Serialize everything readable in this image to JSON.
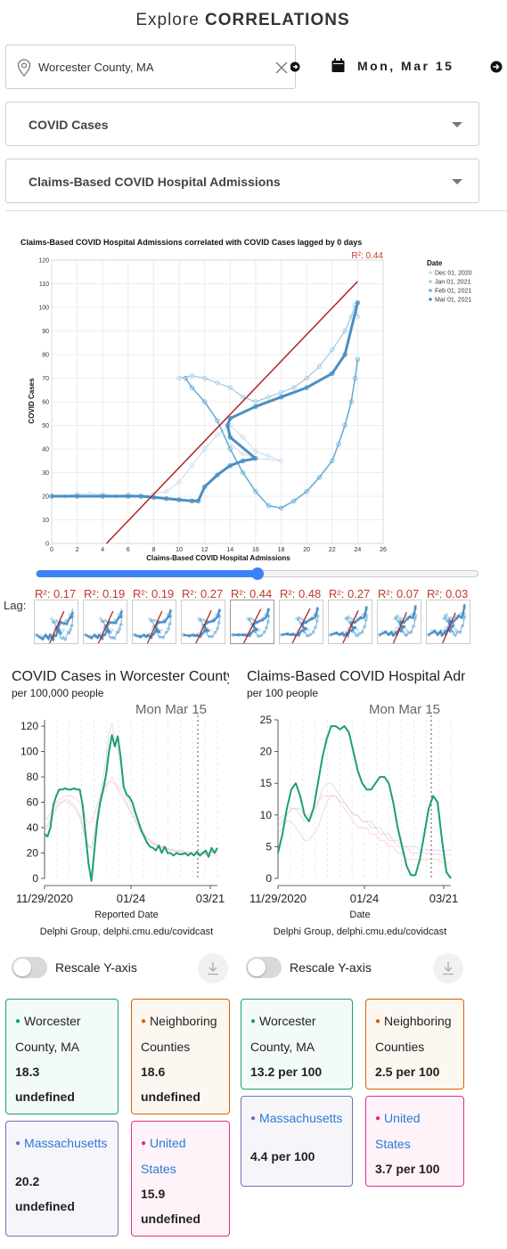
{
  "header": {
    "title_prefix": "Explore",
    "title_main": "CORRELATIONS"
  },
  "location": {
    "value": "Worcester County, MA",
    "icon": "map-pin-icon"
  },
  "date": {
    "label": "Mon, Mar 15",
    "icon": "calendar-icon"
  },
  "selects": {
    "signal_1": "COVID Cases",
    "signal_2": "Claims-Based COVID Hospital Admissions"
  },
  "scatter": {
    "title": "Claims-Based COVID Hospital Admissions correlated with COVID Cases lagged by 0 days",
    "r2_label": "R²: 0.44",
    "legend_title": "Date",
    "legend_items": [
      "Dec 01, 2020",
      "Jan 01, 2021",
      "Feb 01, 2021",
      "Mar 01, 2021"
    ]
  },
  "lag": {
    "label": "Lag:",
    "r2_values": [
      "R²: 0.17",
      "R²: 0.19",
      "R²: 0.19",
      "R²: 0.27",
      "R²: 0.44",
      "R²: 0.48",
      "R²: 0.27",
      "R²: 0.07",
      "R²: 0.03"
    ],
    "selected_index": 4,
    "slider_fraction": 0.5
  },
  "left_panel": {
    "title": "COVID Cases in Worcester County",
    "subtitle": "per 100,000 people",
    "date_marker": "Mon Mar 15",
    "xlabel": "Reported Date",
    "credit": "Delphi Group, delphi.cmu.edu/covidcast",
    "toggle_label": "Rescale Y-axis"
  },
  "right_panel": {
    "title": "Claims-Based COVID Hospital Admissions",
    "subtitle": "per 100 people",
    "date_marker": "Mon Mar 15",
    "xlabel": "Date",
    "credit": "Delphi Group, delphi.cmu.edu/covidcast",
    "toggle_label": "Rescale Y-axis"
  },
  "cards_left": [
    {
      "name": "Worcester County, MA",
      "value": "18.3",
      "unit": "undefined",
      "color": "#1b9e77"
    },
    {
      "name": "Neighboring Counties",
      "value": "18.6",
      "unit": "undefined",
      "color": "#d95f02"
    },
    {
      "name": "Massachusetts",
      "value": "20.2",
      "unit": "undefined",
      "color": "#7570b3"
    },
    {
      "name": "United States",
      "value": "15.9",
      "unit": "undefined",
      "color": "#e7298a"
    }
  ],
  "cards_right": [
    {
      "name": "Worcester County, MA",
      "value": "13.2 per 100",
      "color": "#1b9e77"
    },
    {
      "name": "Neighboring Counties",
      "value": "2.5 per 100",
      "color": "#d95f02"
    },
    {
      "name": "Massachusetts",
      "value": "4.4 per 100",
      "color": "#7570b3"
    },
    {
      "name": "United States",
      "value": "3.7 per 100",
      "color": "#e7298a"
    }
  ],
  "chart_data": [
    {
      "type": "scatter",
      "title": "Claims-Based COVID Hospital Admissions correlated with COVID Cases lagged by 0 days",
      "xlabel": "Claims-Based COVID Hospital Admissions",
      "ylabel": "COVID Cases",
      "xlim": [
        0,
        26
      ],
      "ylim": [
        0,
        120
      ],
      "xticks": [
        0,
        2,
        4,
        6,
        8,
        10,
        12,
        14,
        16,
        18,
        20,
        22,
        24,
        26
      ],
      "yticks": [
        0,
        10,
        20,
        30,
        40,
        50,
        60,
        70,
        80,
        90,
        100,
        110,
        120
      ],
      "grid": true,
      "legend_position": "right",
      "r2": 0.44,
      "regression_line": [
        [
          4.3,
          0
        ],
        [
          24,
          111
        ]
      ],
      "series": [
        {
          "name": "Dec 01, 2020",
          "points": [
            [
              0,
              20
            ],
            [
              1,
              20
            ],
            [
              2,
              21
            ],
            [
              3,
              21
            ],
            [
              4,
              21
            ],
            [
              5,
              20
            ],
            [
              6,
              21
            ],
            [
              7,
              20
            ],
            [
              8,
              21
            ],
            [
              9,
              22
            ],
            [
              10,
              26
            ],
            [
              11,
              33
            ],
            [
              12,
              40
            ],
            [
              13,
              46
            ],
            [
              14,
              50
            ],
            [
              15,
              45
            ],
            [
              16,
              39
            ],
            [
              17,
              37
            ],
            [
              18,
              35
            ],
            [
              16,
              36
            ],
            [
              15,
              38
            ],
            [
              14,
              42
            ]
          ]
        },
        {
          "name": "Jan 01, 2021",
          "points": [
            [
              10,
              70
            ],
            [
              11,
              71
            ],
            [
              12,
              70
            ],
            [
              13,
              68
            ],
            [
              14,
              66
            ],
            [
              15,
              62
            ],
            [
              16,
              60
            ],
            [
              17,
              62
            ],
            [
              18,
              64
            ],
            [
              19,
              66
            ],
            [
              20,
              70
            ],
            [
              21,
              75
            ],
            [
              22,
              82
            ],
            [
              23,
              90
            ],
            [
              23.5,
              96
            ],
            [
              23.8,
              101
            ],
            [
              24,
              96
            ]
          ]
        },
        {
          "name": "Feb 01, 2021",
          "points": [
            [
              24,
              78
            ],
            [
              23.8,
              70
            ],
            [
              23.5,
              60
            ],
            [
              23,
              50
            ],
            [
              22.5,
              42
            ],
            [
              22,
              35
            ],
            [
              21,
              28
            ],
            [
              20,
              22
            ],
            [
              19,
              18
            ],
            [
              18,
              15
            ],
            [
              17,
              16
            ],
            [
              16,
              22
            ],
            [
              15,
              30
            ],
            [
              14,
              40
            ],
            [
              13,
              52
            ],
            [
              12,
              60
            ],
            [
              11,
              66
            ],
            [
              10.5,
              70
            ]
          ]
        },
        {
          "name": "Mar 01, 2021",
          "points": [
            [
              0,
              20
            ],
            [
              2,
              20
            ],
            [
              4,
              20
            ],
            [
              6,
              20
            ],
            [
              7,
              20
            ],
            [
              8,
              19.5
            ],
            [
              9,
              19
            ],
            [
              10,
              18.5
            ],
            [
              11,
              18
            ],
            [
              11.5,
              18
            ],
            [
              12,
              24
            ],
            [
              13,
              29
            ],
            [
              14,
              33
            ],
            [
              15,
              35
            ],
            [
              16,
              36
            ],
            [
              14,
              45
            ],
            [
              13.8,
              50
            ],
            [
              14,
              53
            ],
            [
              16,
              58
            ],
            [
              18,
              62
            ],
            [
              20,
              66
            ],
            [
              22,
              72
            ],
            [
              23,
              80
            ],
            [
              24,
              102
            ]
          ]
        }
      ]
    },
    {
      "type": "line",
      "title": "COVID Cases in Worcester County",
      "xlabel": "Reported Date",
      "ylabel": "",
      "x_ticks": [
        "11/29/2020",
        "01/24",
        "03/21"
      ],
      "ylim": [
        0,
        125
      ],
      "yticks": [
        0,
        20,
        40,
        60,
        80,
        100,
        120
      ],
      "marker_date": "Mon Mar 15",
      "series": [
        {
          "name": "Worcester County, MA",
          "values": [
            35,
            33,
            40,
            58,
            65,
            70,
            70,
            71,
            70,
            70,
            71,
            70,
            70,
            58,
            35,
            12,
            -2,
            22,
            45,
            60,
            70,
            82,
            100,
            113,
            104,
            112,
            95,
            72,
            66,
            64,
            60,
            52,
            45,
            38,
            33,
            28,
            25,
            24,
            22,
            26,
            20,
            25,
            20,
            20,
            18,
            20,
            19,
            19,
            20,
            18,
            20,
            18,
            21,
            18,
            20,
            22,
            17,
            24,
            20,
            24
          ]
        },
        {
          "name": "Neighboring Counties",
          "values": [
            40,
            42,
            48,
            54,
            58,
            60,
            60,
            61,
            60,
            58,
            56,
            52,
            48,
            40,
            30,
            25,
            24,
            35,
            48,
            60,
            68,
            72,
            76,
            80,
            76,
            72,
            70,
            66,
            60,
            55,
            50,
            45,
            40,
            36,
            33,
            30,
            28,
            27,
            26,
            25,
            24,
            24,
            23,
            22,
            22,
            21,
            21,
            21,
            20,
            20,
            20,
            20,
            20,
            20,
            20,
            20,
            20,
            20,
            20,
            20
          ]
        },
        {
          "name": "Massachusetts",
          "values": [
            38,
            40,
            45,
            50,
            55,
            58,
            60,
            62,
            62,
            60,
            58,
            55,
            50,
            42,
            32,
            26,
            24,
            34,
            50,
            66,
            80,
            95,
            115,
            122,
            110,
            100,
            88,
            74,
            65,
            60,
            55,
            50,
            45,
            40,
            36,
            32,
            30,
            28,
            27,
            26,
            25,
            25,
            24,
            23,
            23,
            22,
            22,
            22,
            21,
            21,
            21,
            21,
            21,
            21,
            21,
            21,
            21,
            21,
            21,
            21
          ]
        },
        {
          "name": "United States",
          "values": [
            45,
            48,
            52,
            56,
            60,
            62,
            64,
            65,
            65,
            65,
            64,
            62,
            60,
            55,
            48,
            44,
            44,
            50,
            58,
            65,
            70,
            74,
            76,
            76,
            74,
            70,
            66,
            62,
            58,
            54,
            50,
            46,
            42,
            38,
            35,
            32,
            30,
            28,
            27,
            26,
            25,
            24,
            23,
            22,
            22,
            21,
            21,
            20,
            20,
            20,
            19,
            19,
            19,
            19,
            19,
            19,
            18,
            18,
            18,
            18
          ]
        }
      ]
    },
    {
      "type": "line",
      "title": "Claims-Based COVID Hospital Admissions",
      "xlabel": "Date",
      "ylabel": "",
      "x_ticks": [
        "11/29/2020",
        "01/24",
        "03/21"
      ],
      "ylim": [
        0,
        25
      ],
      "yticks": [
        0,
        5,
        10,
        15,
        20,
        25
      ],
      "marker_date": "Mon Mar 15",
      "series": [
        {
          "name": "Worcester County, MA",
          "values": [
            4,
            7,
            11,
            14,
            15,
            13,
            10,
            9,
            11,
            15,
            19,
            22,
            24,
            24,
            23.5,
            24,
            23,
            20,
            17,
            15,
            14,
            14,
            15,
            16,
            16,
            15,
            12,
            8,
            5,
            2,
            0.5,
            0.5,
            3,
            7,
            11,
            13,
            12,
            6,
            1,
            0
          ]
        },
        {
          "name": "Neighboring Counties",
          "values": [
            7,
            8,
            9,
            9,
            8,
            7,
            6,
            6,
            7,
            8,
            10,
            12,
            13,
            13,
            12,
            11,
            10,
            9,
            8,
            8,
            8,
            7,
            7,
            6,
            6,
            5,
            5,
            4,
            4,
            3,
            3,
            3,
            3,
            3,
            3,
            3,
            3,
            2.5,
            2.5,
            2.5
          ]
        },
        {
          "name": "Massachusetts",
          "values": [
            8,
            9,
            10,
            11,
            11,
            10,
            9,
            9,
            10,
            12,
            14,
            15,
            15,
            14,
            13,
            12,
            11,
            10,
            10,
            9,
            9,
            9,
            8,
            8,
            7,
            7,
            6,
            6,
            5,
            5,
            5,
            5,
            4.5,
            4.5,
            4.5,
            4.5,
            4.4,
            4.4,
            4.4,
            4.4
          ]
        },
        {
          "name": "United States",
          "values": [
            9,
            10,
            10,
            11,
            11,
            11,
            10,
            10,
            11,
            12,
            13,
            13,
            13,
            13,
            12,
            12,
            11,
            10,
            10,
            9,
            9,
            8,
            8,
            7,
            7,
            6,
            6,
            5,
            5,
            5,
            4,
            4,
            4,
            4,
            4,
            3.8,
            3.8,
            3.7,
            3.7,
            3.7
          ]
        }
      ]
    }
  ]
}
